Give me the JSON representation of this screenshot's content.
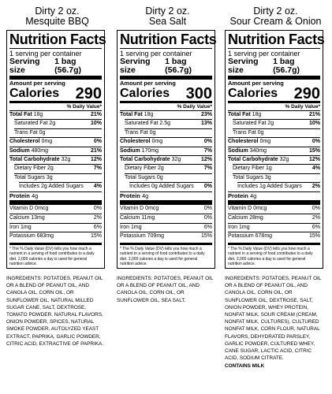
{
  "labels": [
    {
      "product_line1": "Dirty 2 oz.",
      "product_line2": "Mesquite BBQ",
      "title": "Nutrition Facts",
      "servings": "1 serving per container",
      "serving_size_label": "Serving size",
      "serving_size_value": "1 bag (56.7g)",
      "amount_per_serving": "Amount per serving",
      "calories_label": "Calories",
      "calories_value": "290",
      "dv_header": "% Daily Value*",
      "nutrients": [
        {
          "label": "Total Fat",
          "amount": "18g",
          "dv": "21%",
          "bold": true,
          "indent": 0
        },
        {
          "label": "Saturated Fat",
          "amount": "2g",
          "dv": "10%",
          "bold": false,
          "indent": 1
        },
        {
          "label": "Trans Fat",
          "amount": "0g",
          "dv": "",
          "bold": false,
          "indent": 1
        },
        {
          "label": "Cholesterol",
          "amount": "0mg",
          "dv": "0%",
          "bold": true,
          "indent": 0
        },
        {
          "label": "Sodium",
          "amount": "480mg",
          "dv": "21%",
          "bold": true,
          "indent": 0
        },
        {
          "label": "Total Carbohydrate",
          "amount": "32g",
          "dv": "12%",
          "bold": true,
          "indent": 0
        },
        {
          "label": "Dietary Fiber",
          "amount": "2g",
          "dv": "7%",
          "bold": false,
          "indent": 1
        },
        {
          "label": "Total Sugars",
          "amount": "3g",
          "dv": "",
          "bold": false,
          "indent": 1
        },
        {
          "label": "Includes 2g Added Sugars",
          "amount": "",
          "dv": "4%",
          "bold": false,
          "indent": 2
        },
        {
          "label": "Protein",
          "amount": "4g",
          "dv": "",
          "bold": true,
          "indent": 0
        }
      ],
      "vitamins": [
        {
          "label": "Vitamin D",
          "amount": "0mcg",
          "dv": "0%"
        },
        {
          "label": "Calcium",
          "amount": "13mg",
          "dv": "2%"
        },
        {
          "label": "Iron",
          "amount": "1mg",
          "dv": "6%"
        },
        {
          "label": "Potassium",
          "amount": "683mg",
          "dv": "15%"
        }
      ],
      "footnote": "* The % Daily Value (DV) tells you how much a nutrient in a serving of food contributes to a daily diet. 2,000 calories a day is used for general nutrition advice.",
      "ingredients": "INGREDIENTS: POTATOES, PEANUT OIL OR A BLEND OF PEANUT OIL, AND CANOLA OIL, CORN OIL, OR SUNFLOWER OIL, NATURAL MILLED SUGAR CANE, SALT, DEXTROSE, TOMATO POWDER, NATURAL FLAVORS, ONION POWDER, SPICES, NATURAL SMOKE POWDER, AUTOLYZED YEAST EXTRACT, PAPRIKA, GARLIC POWDER, CITRIC ACID, EXTRACTIVE OF PAPRIKA.",
      "contains": ""
    },
    {
      "product_line1": "Dirty 2 oz.",
      "product_line2": "Sea Salt",
      "title": "Nutrition Facts",
      "servings": "1 serving per container",
      "serving_size_label": "Serving size",
      "serving_size_value": "1 bag (56.7g)",
      "amount_per_serving": "Amount per serving",
      "calories_label": "Calories",
      "calories_value": "300",
      "dv_header": "% Daily Value*",
      "nutrients": [
        {
          "label": "Total Fat",
          "amount": "18g",
          "dv": "23%",
          "bold": true,
          "indent": 0
        },
        {
          "label": "Saturated Fat",
          "amount": "2.5g",
          "dv": "13%",
          "bold": false,
          "indent": 1
        },
        {
          "label": "Trans Fat",
          "amount": "0g",
          "dv": "",
          "bold": false,
          "indent": 1
        },
        {
          "label": "Cholesterol",
          "amount": "0mg",
          "dv": "0%",
          "bold": true,
          "indent": 0
        },
        {
          "label": "Sodium",
          "amount": "170mg",
          "dv": "7%",
          "bold": true,
          "indent": 0
        },
        {
          "label": "Total Carbohydrate",
          "amount": "32g",
          "dv": "12%",
          "bold": true,
          "indent": 0
        },
        {
          "label": "Dietary Fiber",
          "amount": "2g",
          "dv": "7%",
          "bold": false,
          "indent": 1
        },
        {
          "label": "Total Sugars",
          "amount": "0g",
          "dv": "",
          "bold": false,
          "indent": 1
        },
        {
          "label": "Includes 0g Added Sugars",
          "amount": "",
          "dv": "0%",
          "bold": false,
          "indent": 2
        },
        {
          "label": "Protein",
          "amount": "4g",
          "dv": "",
          "bold": true,
          "indent": 0
        }
      ],
      "vitamins": [
        {
          "label": "Vitamin D",
          "amount": "0mcg",
          "dv": "0%"
        },
        {
          "label": "Calcium",
          "amount": "11mg",
          "dv": "0%"
        },
        {
          "label": "Iron",
          "amount": "1mg",
          "dv": "6%"
        },
        {
          "label": "Potassium",
          "amount": "709mg",
          "dv": "15%"
        }
      ],
      "footnote": "* The % Daily Value (DV) tells you how much a nutrient in a serving of food contributes to a daily diet. 2,000 calories a day is used for general nutrition advice.",
      "ingredients": "INGREDIENTS: POTATOES, PEANUT OIL OR A BLEND OF PEANUT OIL, AND CANOLA OIL, CORN OIL, OR SUNFLOWER OIL, SEA SALT.",
      "contains": ""
    },
    {
      "product_line1": "Dirty 2 oz.",
      "product_line2": "Sour Cream & Onion",
      "title": "Nutrition Facts",
      "servings": "1 serving per container",
      "serving_size_label": "Serving size",
      "serving_size_value": "1 bag (56.7g)",
      "amount_per_serving": "Amount per serving",
      "calories_label": "Calories",
      "calories_value": "290",
      "dv_header": "% Daily Value*",
      "nutrients": [
        {
          "label": "Total Fat",
          "amount": "18g",
          "dv": "21%",
          "bold": true,
          "indent": 0
        },
        {
          "label": "Saturated Fat",
          "amount": "2g",
          "dv": "10%",
          "bold": false,
          "indent": 1
        },
        {
          "label": "Trans Fat",
          "amount": "0g",
          "dv": "",
          "bold": false,
          "indent": 1
        },
        {
          "label": "Cholesterol",
          "amount": "0mg",
          "dv": "0%",
          "bold": true,
          "indent": 0
        },
        {
          "label": "Sodium",
          "amount": "340mg",
          "dv": "15%",
          "bold": true,
          "indent": 0
        },
        {
          "label": "Total Carbohydrate",
          "amount": "32g",
          "dv": "12%",
          "bold": true,
          "indent": 0
        },
        {
          "label": "Dietary Fiber",
          "amount": "1g",
          "dv": "4%",
          "bold": false,
          "indent": 1
        },
        {
          "label": "Total Sugars",
          "amount": "3g",
          "dv": "",
          "bold": false,
          "indent": 1
        },
        {
          "label": "Includes 1g Added Sugars",
          "amount": "",
          "dv": "2%",
          "bold": false,
          "indent": 2
        },
        {
          "label": "Protein",
          "amount": "4g",
          "dv": "",
          "bold": true,
          "indent": 0
        }
      ],
      "vitamins": [
        {
          "label": "Vitamin D",
          "amount": "0mcg",
          "dv": "0%"
        },
        {
          "label": "Calcium",
          "amount": "28mg",
          "dv": "2%"
        },
        {
          "label": "Iron",
          "amount": "1mg",
          "dv": "6%"
        },
        {
          "label": "Potassium",
          "amount": "678mg",
          "dv": "15%"
        }
      ],
      "footnote": "* The % Daily Value (DV) tells you how much a nutrient in a serving of food contributes to a daily diet. 2,000 calories a day is used for general nutrition advice.",
      "ingredients": "INGREDIENTS: POTATOES, PEANUT OIL OR A BLEND OF PEANUT OIL, AND CANOLA OIL, CORN OIL, OR SUNFLOWER OIL, DEXTROSE, SALT, ONION POWDER, WHEY PROTEIN, NONFAT MILK, SOUR CREAM (CREAM, NONFAT MILK, CULTURES), CULTURED NONFAT MILK, CORN FLOUR, NATURAL FLAVORS, DEHYDRATED PARSLEY, GARLIC POWDER, CULTURED WHEY, CANE SUGAR, LACTIC ACID, CITRIC ACID, SODIUM CITRATE.",
      "contains": "CONTAINS MILK"
    }
  ]
}
